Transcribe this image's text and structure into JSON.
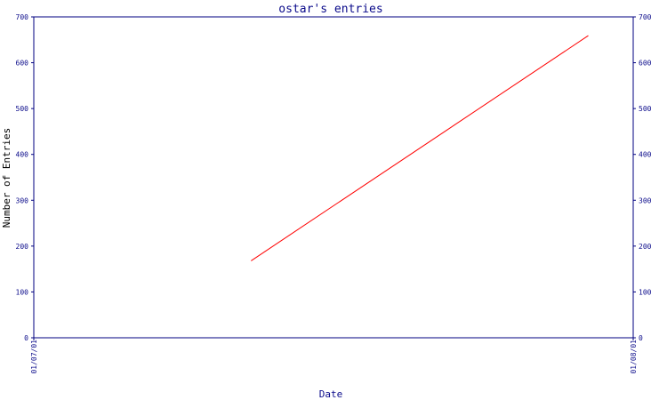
{
  "chart_data": {
    "type": "line",
    "title": "ostar's entries",
    "xlabel": "Date",
    "ylabel": "Number of Entries",
    "x_tick_labels": [
      "01/07/01",
      "01/08/01"
    ],
    "xlim": [
      "2001-01-07",
      "2001-01-08"
    ],
    "ylim": [
      0,
      700
    ],
    "y_ticks": [
      0,
      100,
      200,
      300,
      400,
      500,
      600,
      700
    ],
    "grid": false,
    "series": [
      {
        "x": [
          "2001-01-07T08:42",
          "2001-01-07T22:12"
        ],
        "values": [
          168,
          659
        ]
      }
    ]
  },
  "colors": {
    "axis": "#000080",
    "line": "#ff0000",
    "text": "#0a0a8a"
  }
}
